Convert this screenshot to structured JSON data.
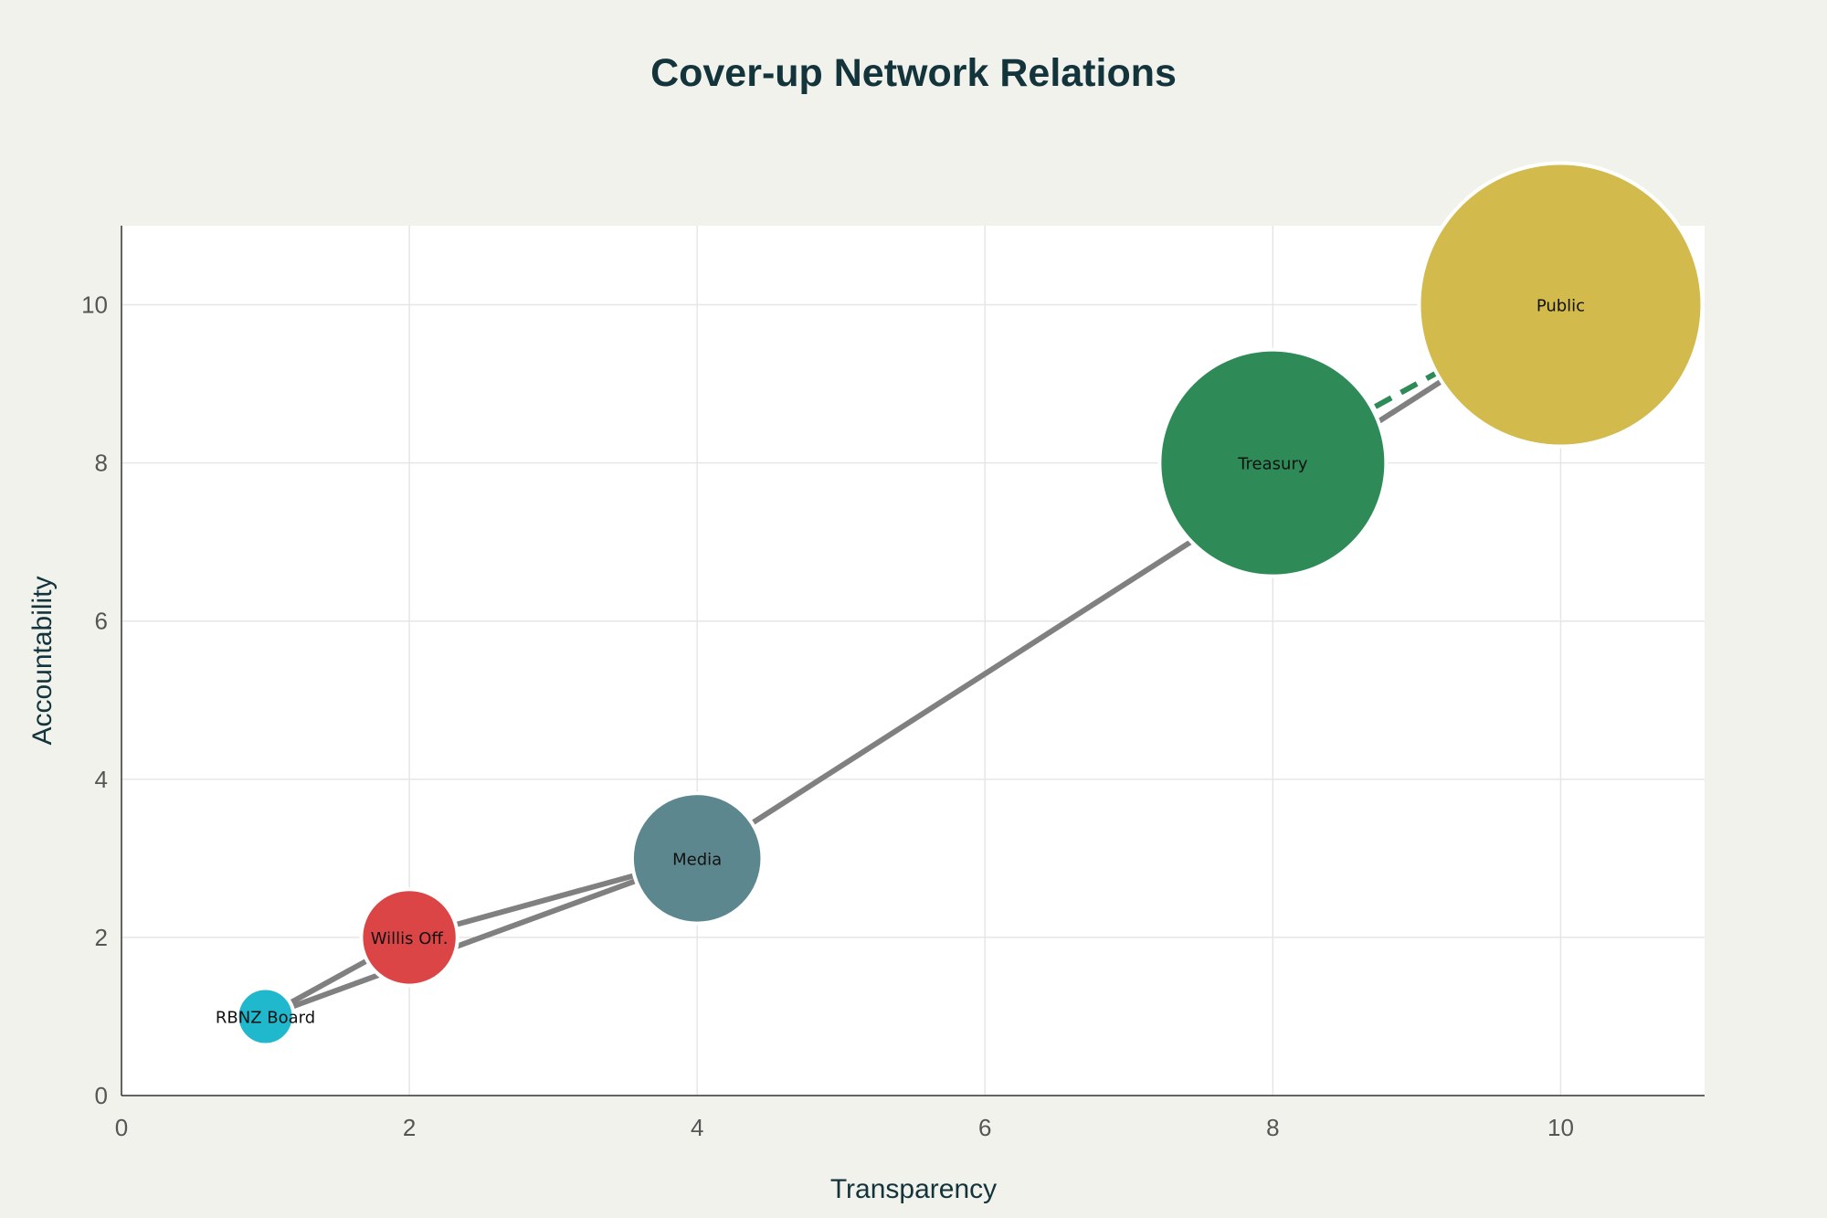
{
  "chart_data": {
    "type": "scatter",
    "title": "Cover-up Network Relations",
    "xlabel": "Transparency",
    "ylabel": "Accountability",
    "xlim": [
      0,
      11
    ],
    "ylim": [
      0,
      11
    ],
    "x_ticks": [
      0,
      2,
      4,
      6,
      8,
      10
    ],
    "y_ticks": [
      0,
      2,
      4,
      6,
      8,
      10
    ],
    "grid": true,
    "legend": "none",
    "nodes": [
      {
        "id": "rbnz",
        "label": "RBNZ Board",
        "x": 1,
        "y": 1,
        "size": 1,
        "color": "#1fb8cd"
      },
      {
        "id": "willis",
        "label": "Willis Off.",
        "x": 2,
        "y": 2,
        "size": 1.7,
        "color": "#db4545"
      },
      {
        "id": "media",
        "label": "Media",
        "x": 4,
        "y": 3,
        "size": 2.3,
        "color": "#5d878f"
      },
      {
        "id": "treasury",
        "label": "Treasury",
        "x": 8,
        "y": 8,
        "size": 4,
        "color": "#2e8b57"
      },
      {
        "id": "public",
        "label": "Public",
        "x": 10,
        "y": 10,
        "size": 5,
        "color": "#d2ba4c"
      }
    ],
    "edges": [
      {
        "from": "rbnz",
        "to": "willis",
        "style": "solid",
        "color": "#808080"
      },
      {
        "from": "rbnz",
        "to": "media",
        "style": "solid",
        "color": "#808080"
      },
      {
        "from": "willis",
        "to": "media",
        "style": "solid",
        "color": "#808080"
      },
      {
        "from": "media",
        "to": "public",
        "style": "solid",
        "color": "#808080"
      },
      {
        "from": "treasury",
        "to": "public",
        "style": "dashed",
        "color": "#2e8b57"
      }
    ]
  }
}
